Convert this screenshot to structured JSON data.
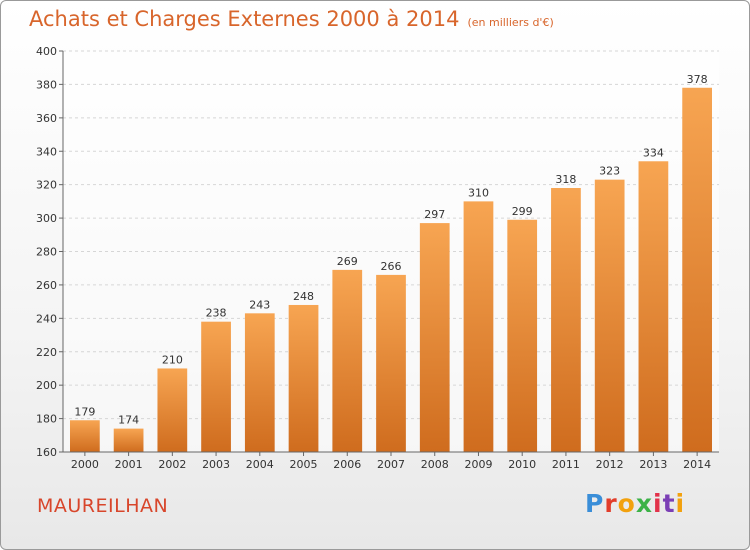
{
  "header": {
    "title": "Achats et Charges Externes 2000 à 2014",
    "unit": "(en milliers d'€)"
  },
  "footer": {
    "town": "MAUREILHAN",
    "logo_letters": [
      "P",
      "r",
      "o",
      "x",
      "i",
      "t",
      "i"
    ]
  },
  "colors": {
    "bar_top": "#f7a552",
    "bar_bottom": "#cf6c1e",
    "title": "#d8652b",
    "town": "#d8462b",
    "logo": [
      "#3a8ed8",
      "#e23d2a",
      "#f2a10d",
      "#3cb247",
      "#e2324a",
      "#7b3fb5",
      "#f2a10d"
    ]
  },
  "chart_data": {
    "type": "bar",
    "title": "Achats et Charges Externes 2000 à 2014",
    "categories": [
      "2000",
      "2001",
      "2002",
      "2003",
      "2004",
      "2005",
      "2006",
      "2007",
      "2008",
      "2009",
      "2010",
      "2011",
      "2012",
      "2013",
      "2014"
    ],
    "values": [
      179,
      174,
      210,
      238,
      243,
      248,
      269,
      266,
      297,
      310,
      299,
      318,
      323,
      334,
      378
    ],
    "ylim": [
      160,
      400
    ],
    "yticks": [
      160,
      180,
      200,
      220,
      240,
      260,
      280,
      300,
      320,
      340,
      360,
      380,
      400
    ],
    "grid": true,
    "xlabel": "",
    "ylabel": ""
  }
}
